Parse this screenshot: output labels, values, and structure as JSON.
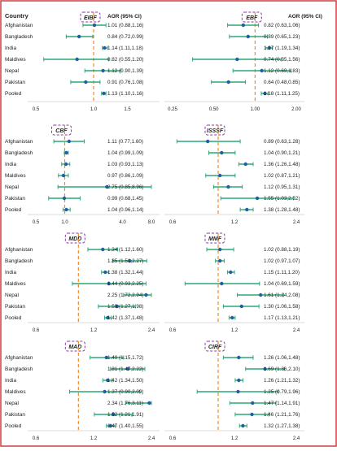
{
  "colors": {
    "frame": "#d23c3c",
    "ci_line": "#2aa876",
    "point": "#1f5fa6",
    "ref_line": "#f08a2a",
    "tag_border": "#8a3aa8",
    "axis": "#555555"
  },
  "header": {
    "country_label": "Country",
    "aor_label": "AOR (95% CI)"
  },
  "chart_data": [
    {
      "type": "forest",
      "title": "EIBF",
      "xlim": [
        0.5,
        2.0
      ],
      "xticks": [
        "0.5",
        "1.0",
        "1.5"
      ],
      "ref": 1.0,
      "countries": [
        "Afghanistan",
        "Bangladesh",
        "India",
        "Maldives",
        "Nepal",
        "Pakistan",
        "Pooled"
      ],
      "labels": [
        "1.01 (0.88,1.16)",
        "0.84 (0.72,0.99)",
        "1.14 (1.11,1.18)",
        "0.82 (0.55,1.20)",
        "1.12 (0.90,1.39)",
        "0.91 (0.76,1.08)",
        "1.13 (1.10,1.16)"
      ],
      "est": [
        1.01,
        0.84,
        1.14,
        0.82,
        1.12,
        0.91,
        1.13
      ],
      "lo": [
        0.88,
        0.72,
        1.11,
        0.55,
        0.9,
        0.76,
        1.1
      ],
      "hi": [
        1.16,
        0.99,
        1.18,
        1.2,
        1.39,
        1.08,
        1.16
      ]
    },
    {
      "type": "forest",
      "title": "EBF",
      "xlim": [
        0.25,
        2.0
      ],
      "xticks": [
        "0.25",
        "0.50",
        "1.00",
        "2.00"
      ],
      "ref": 1.0,
      "labels": [
        "0.82 (0.63,1.06)",
        "0.89 (0.65,1.23)",
        "1.27 (1.19,1.34)",
        "0.74 (0.35,1.56)",
        "1.12 (0.69,1.83)",
        "0.64 (0.48,0.85)",
        "1.18 (1.11,1.25)"
      ],
      "est": [
        0.82,
        0.89,
        1.27,
        0.74,
        1.12,
        0.64,
        1.18
      ],
      "lo": [
        0.63,
        0.65,
        1.19,
        0.35,
        0.69,
        0.48,
        1.11
      ],
      "hi": [
        1.06,
        1.23,
        1.34,
        1.56,
        1.83,
        0.85,
        1.25
      ]
    },
    {
      "type": "forest",
      "title": "CBF",
      "xlim": [
        0.5,
        8.0
      ],
      "xticks": [
        "0.5",
        "1.0",
        "4.0",
        "8.0"
      ],
      "ref": 1.0,
      "countries": [
        "Afghanistan",
        "Bangladesh",
        "India",
        "Maldives",
        "Nepal",
        "Pakistan",
        "Pooled"
      ],
      "labels": [
        "1.11 (0.77,1.60)",
        "1.04 (0.99,1.09)",
        "1.03 (0.93,1.13)",
        "0.97 (0.86,1.09)",
        "2.75 (0.85,8.96)",
        "0.99 (0.68,1.45)",
        "1.04 (0.96,1.14)"
      ],
      "est": [
        1.11,
        1.04,
        1.03,
        0.97,
        2.75,
        0.99,
        1.04
      ],
      "lo": [
        0.77,
        0.99,
        0.93,
        0.86,
        0.85,
        0.68,
        0.96
      ],
      "hi": [
        1.6,
        1.09,
        1.13,
        1.09,
        8.96,
        1.45,
        1.14
      ]
    },
    {
      "type": "forest",
      "title": "ISSSF",
      "xlim": [
        0.6,
        2.4
      ],
      "xticks": [
        "0.6",
        "1.2",
        "2.4"
      ],
      "ref": 1.0,
      "labels": [
        "0.89 (0.63,1.28)",
        "1.04 (0.90,1.21)",
        "1.36 (1.26,1.48)",
        "1.02 (0.87,1.21)",
        "1.12 (0.95,1.31)",
        "1.55 (1.03,2.32)",
        "1.38 (1.28,1.48)"
      ],
      "est": [
        0.89,
        1.04,
        1.36,
        1.02,
        1.12,
        1.55,
        1.38
      ],
      "lo": [
        0.63,
        0.9,
        1.26,
        0.87,
        0.95,
        1.03,
        1.28
      ],
      "hi": [
        1.28,
        1.21,
        1.48,
        1.21,
        1.31,
        2.32,
        1.48
      ]
    },
    {
      "type": "forest",
      "title": "MDD",
      "xlim": [
        0.6,
        2.4
      ],
      "xticks": [
        "0.6",
        "1.2",
        "2.4"
      ],
      "ref": 1.0,
      "countries": [
        "Afghanistan",
        "Bangladesh",
        "India",
        "Maldives",
        "Nepal",
        "Pakistan",
        "Pooled"
      ],
      "labels": [
        "1.34 (1.12,1.60)",
        "1.85 (1.51,2.27)",
        "1.38 (1.32,1.44)",
        "1.44 (0.93,2.25)",
        "2.25 (1.72,2.94)",
        "1.59 (1.27,1.98)",
        "1.42 (1.37,1.48)"
      ],
      "est": [
        1.34,
        1.85,
        1.38,
        1.44,
        2.25,
        1.59,
        1.42
      ],
      "lo": [
        1.12,
        1.51,
        1.32,
        0.93,
        1.72,
        1.27,
        1.37
      ],
      "hi": [
        1.6,
        2.27,
        1.44,
        2.25,
        2.94,
        1.98,
        1.48
      ]
    },
    {
      "type": "forest",
      "title": "MMF",
      "xlim": [
        0.6,
        2.4
      ],
      "xticks": [
        "0.6",
        "1.2",
        "2.4"
      ],
      "ref": 1.0,
      "labels": [
        "1.02 (0.88,1.19)",
        "1.02 (0.97,1.07)",
        "1.15 (1.11,1.20)",
        "1.04 (0.69,1.59)",
        "1.61 (1.24,2.08)",
        "1.30 (1.06,1.58)",
        "1.17 (1.13,1.21)"
      ],
      "est": [
        1.02,
        1.02,
        1.15,
        1.04,
        1.61,
        1.3,
        1.17
      ],
      "lo": [
        0.88,
        0.97,
        1.11,
        0.69,
        1.24,
        1.06,
        1.13
      ],
      "hi": [
        1.19,
        1.07,
        1.2,
        1.59,
        2.08,
        1.58,
        1.21
      ]
    },
    {
      "type": "forest",
      "title": "MAD",
      "xlim": [
        0.6,
        2.4
      ],
      "xticks": [
        "0.6",
        "1.2",
        "2.4"
      ],
      "ref": 1.0,
      "countries": [
        "Afghanistan",
        "Bangladesh",
        "India",
        "Maldives",
        "Nepal",
        "Pakistan",
        "Pooled"
      ],
      "labels": [
        "1.40 (1.15,1.72)",
        "1.81 (1.47,2.22)",
        "1.42 (1.34,1.50)",
        "1.37 (0.90,2.09)",
        "2.34 (1.76,3.11)",
        "1.52 (1.21,1.91)",
        "1.47 (1.40,1.55)"
      ],
      "est": [
        1.4,
        1.81,
        1.42,
        1.37,
        2.34,
        1.52,
        1.47
      ],
      "lo": [
        1.15,
        1.47,
        1.34,
        0.9,
        1.76,
        1.21,
        1.4
      ],
      "hi": [
        1.72,
        2.22,
        1.5,
        2.09,
        3.11,
        1.91,
        1.55
      ]
    },
    {
      "type": "forest",
      "title": "CIRF",
      "xlim": [
        0.6,
        2.4
      ],
      "xticks": [
        "0.6",
        "1.2",
        "2.4"
      ],
      "ref": 1.0,
      "labels": [
        "1.26 (1.06,1.48)",
        "1.69 (1.36,2.10)",
        "1.26 (1.21,1.32)",
        "1.25 (0.79,1.96)",
        "1.47 (1.14,1.91)",
        "1.46 (1.21,1.76)",
        "1.32 (1.27,1.38)"
      ],
      "est": [
        1.26,
        1.69,
        1.26,
        1.25,
        1.47,
        1.46,
        1.32
      ],
      "lo": [
        1.06,
        1.36,
        1.21,
        0.79,
        1.14,
        1.21,
        1.27
      ],
      "hi": [
        1.48,
        2.1,
        1.32,
        1.96,
        1.91,
        1.76,
        1.38
      ]
    }
  ]
}
